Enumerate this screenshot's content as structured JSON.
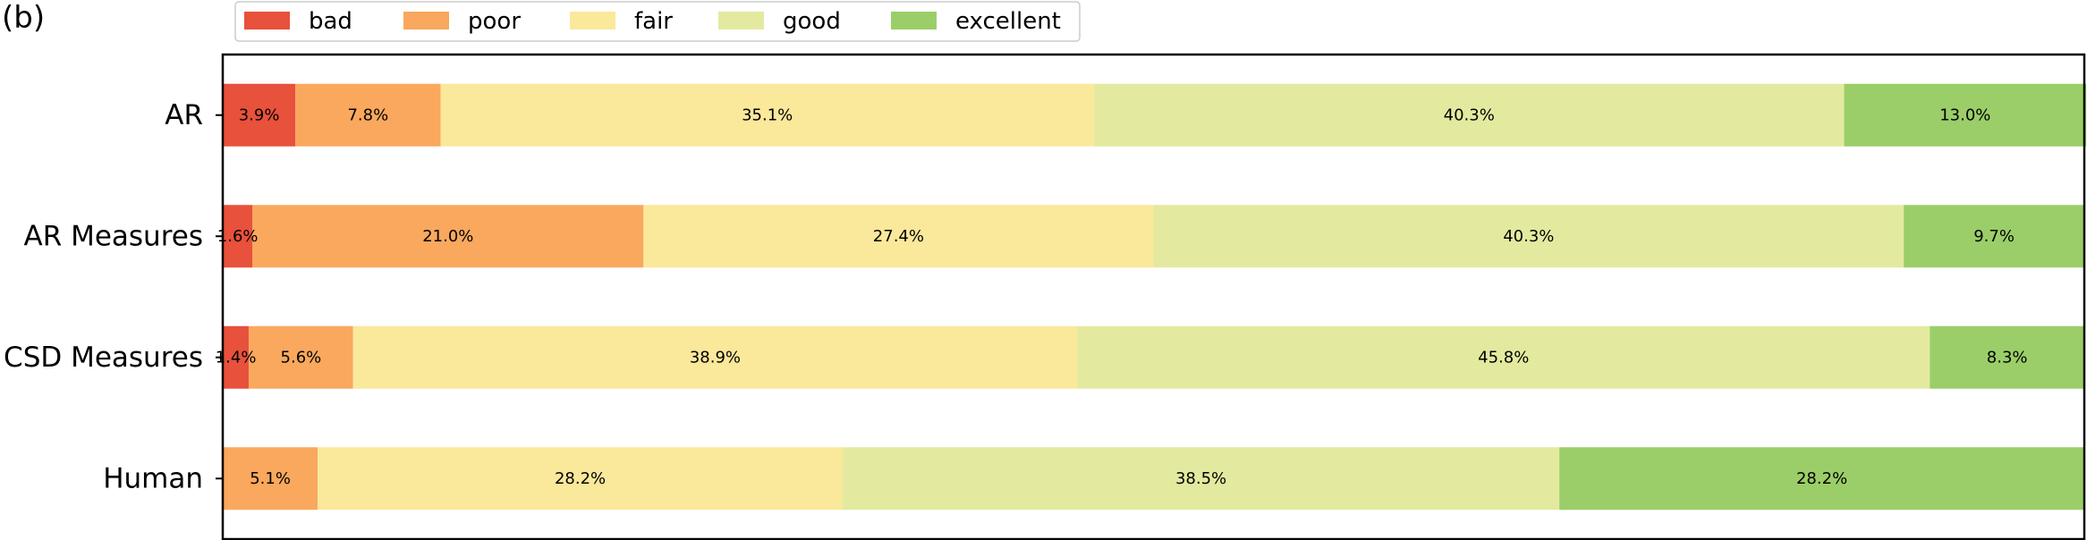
{
  "panel_label": "(b)",
  "chart_data": {
    "type": "bar",
    "orientation": "horizontal-stacked",
    "categories": [
      "AR",
      "AR Measures",
      "CSD Measures",
      "Human"
    ],
    "series": [
      {
        "name": "bad",
        "color": "#e8513b",
        "values": [
          3.9,
          1.6,
          1.4,
          0.0
        ],
        "labels": [
          "3.9%",
          "1.6%",
          "1.4%",
          ""
        ]
      },
      {
        "name": "poor",
        "color": "#f9a85e",
        "values": [
          7.8,
          21.0,
          5.6,
          5.1
        ],
        "labels": [
          "7.8%",
          "21.0%",
          "5.6%",
          "5.1%"
        ]
      },
      {
        "name": "fair",
        "color": "#fae89b",
        "values": [
          35.1,
          27.4,
          38.9,
          28.2
        ],
        "labels": [
          "35.1%",
          "27.4%",
          "38.9%",
          "28.2%"
        ]
      },
      {
        "name": "good",
        "color": "#e3ea9f",
        "values": [
          40.3,
          40.3,
          45.8,
          38.5
        ],
        "labels": [
          "40.3%",
          "40.3%",
          "45.8%",
          "38.5%"
        ]
      },
      {
        "name": "excellent",
        "color": "#9bce68",
        "values": [
          13.0,
          9.7,
          8.3,
          28.2
        ],
        "labels": [
          "13.0%",
          "9.7%",
          "8.3%",
          "28.2%"
        ]
      }
    ],
    "xlim": [
      0,
      100
    ],
    "legend_position": "top-left"
  }
}
